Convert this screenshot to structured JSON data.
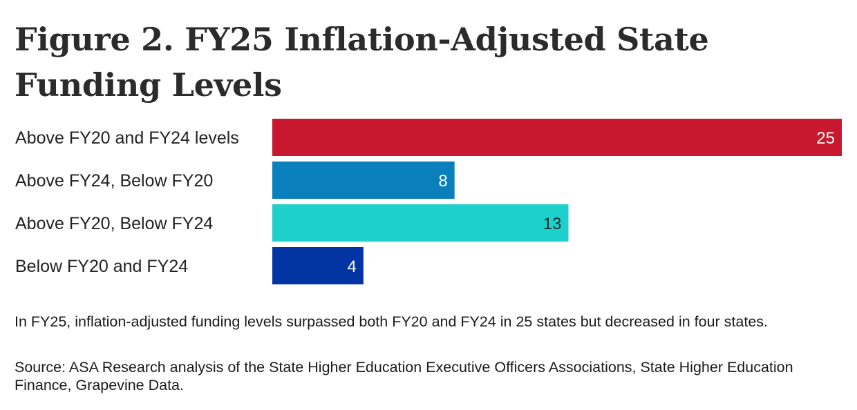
{
  "chart_data": {
    "type": "bar",
    "orientation": "horizontal",
    "title": "Figure 2. FY25 Inflation-Adjusted State Funding Levels",
    "categories": [
      "Above FY20 and FY24 levels",
      "Above FY24, Below FY20",
      "Above FY20, Below FY24",
      "Below FY20 and FY24"
    ],
    "values": [
      25,
      8,
      13,
      4
    ],
    "colors": [
      "#c8182f",
      "#0980bc",
      "#1ed0cb",
      "#0334a3"
    ],
    "label_colors": [
      "#ffffff",
      "#ffffff",
      "#1f2a30",
      "#ffffff"
    ],
    "xlim": [
      0,
      25
    ],
    "grid": false,
    "legend": "none"
  },
  "notes": {
    "summary": "In FY25, inflation-adjusted funding levels surpassed both FY20 and FY24 in 25 states but decreased in four states.",
    "source": "Source: ASA Research analysis of the State Higher Education Executive Officers Associations, State Higher Education Finance, Grapevine Data."
  }
}
